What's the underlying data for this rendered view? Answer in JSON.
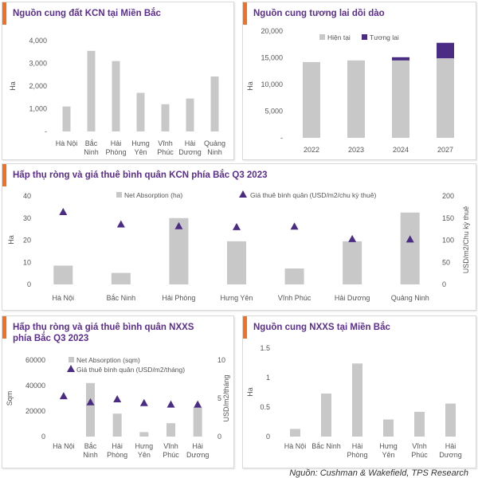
{
  "colors": {
    "bar": "#c8c8c8",
    "future": "#4b2c85",
    "marker": "#4b2c85",
    "title": "#5b2d8e",
    "accent": "#f37021"
  },
  "source": "Nguồn: Cushman & Wakefield, TPS Research",
  "chart_data": [
    {
      "id": "c1",
      "type": "bar",
      "title": "Nguồn cung đất KCN tại Miền Bắc",
      "ylabel": "Ha",
      "ylim": [
        0,
        4000
      ],
      "yticks": [
        "-",
        "1,000",
        "2,000",
        "3,000",
        "4,000"
      ],
      "categories": [
        [
          "Hà Nội"
        ],
        [
          "Bắc",
          "Ninh"
        ],
        [
          "Hải",
          "Phòng"
        ],
        [
          "Hưng",
          "Yên"
        ],
        [
          "Vĩnh",
          "Phúc"
        ],
        [
          "Hải",
          "Dương"
        ],
        [
          "Quảng",
          "Ninh"
        ]
      ],
      "values": [
        1100,
        3550,
        3100,
        1700,
        1200,
        1450,
        2420
      ]
    },
    {
      "id": "c2",
      "type": "bar",
      "stacked": true,
      "title": "Nguồn cung tương lai dồi dào",
      "ylabel": "Ha",
      "ylim": [
        0,
        20000
      ],
      "yticks": [
        "-",
        "5,000",
        "10,000",
        "15,000",
        "20,000"
      ],
      "categories": [
        "2022",
        "2023",
        "2024",
        "2027"
      ],
      "series": [
        {
          "name": "Hiện tại",
          "values": [
            14200,
            14500,
            14500,
            14900
          ]
        },
        {
          "name": "Tương lai",
          "values": [
            0,
            0,
            600,
            2900
          ]
        }
      ],
      "legend": "top"
    },
    {
      "id": "c3",
      "type": "bar",
      "title": "Hấp thụ ròng và giá thuê bình quân KCN phía Bắc Q3 2023",
      "ylabel": "Ha",
      "y2label": "USD/m2/Chu kỳ thuê",
      "ylim": [
        0,
        40
      ],
      "y2lim": [
        0,
        200
      ],
      "yticks": [
        "0",
        "10",
        "20",
        "30",
        "40"
      ],
      "y2ticks": [
        "0",
        "50",
        "100",
        "150",
        "200"
      ],
      "categories": [
        "Hà Nội",
        "Bắc Ninh",
        "Hải Phòng",
        "Hưng Yên",
        "Vĩnh Phúc",
        "Hải Dương",
        "Quảng Ninh"
      ],
      "series": [
        {
          "name": "Net Absorption (ha)",
          "values": [
            8.5,
            5.2,
            30,
            19.5,
            7.2,
            19.5,
            32.5
          ]
        },
        {
          "name": "Giá thuê bình quân (USD/m2/chu kỳ thuê)",
          "values": [
            164,
            136,
            132,
            130,
            131,
            103,
            102
          ],
          "axis": "y2"
        }
      ]
    },
    {
      "id": "c4",
      "type": "bar",
      "title": "Hấp thụ ròng và giá thuê bình quân NXXS phía Bắc Q3 2023",
      "ylabel": "Sqm",
      "y2label": "USD/m2/tháng",
      "ylim": [
        0,
        60000
      ],
      "y2lim": [
        0,
        10
      ],
      "yticks": [
        "0",
        "20000",
        "40000",
        "60000"
      ],
      "y2ticks": [
        "0",
        "5",
        "10"
      ],
      "categories": [
        [
          "Hà Nội"
        ],
        [
          "Bắc",
          "Ninh"
        ],
        [
          "Hải",
          "Phòng"
        ],
        [
          "Hưng",
          "Yên"
        ],
        [
          "Vĩnh",
          "Phúc"
        ],
        [
          "Hải",
          "Dương"
        ]
      ],
      "series": [
        {
          "name": "Net Absorption (sqm)",
          "values": [
            0,
            42000,
            18000,
            3500,
            10500,
            23000
          ]
        },
        {
          "name": "Giá thuê bình quân (USD/m2/tháng)",
          "values": [
            5.3,
            4.5,
            4.9,
            4.4,
            4.2,
            4.2
          ],
          "axis": "y2"
        }
      ]
    },
    {
      "id": "c5",
      "type": "bar",
      "title": "Nguồn cung NXXS tại Miền Bắc",
      "ylabel": "Ha",
      "ylim": [
        0,
        1.5
      ],
      "yticks": [
        "0",
        "0.5",
        "1",
        "1.5"
      ],
      "categories": [
        [
          "Hà Nội"
        ],
        [
          "Bắc Ninh"
        ],
        [
          "Hải",
          "Phòng"
        ],
        [
          "Hưng",
          "Yên"
        ],
        [
          "Vĩnh",
          "Phúc"
        ],
        [
          "Hải",
          "Dương"
        ]
      ],
      "values": [
        0.13,
        0.73,
        1.24,
        0.29,
        0.42,
        0.56
      ]
    }
  ]
}
